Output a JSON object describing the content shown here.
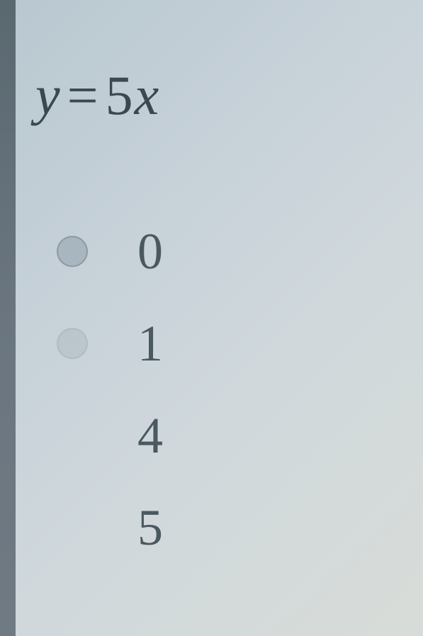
{
  "equation": {
    "var_y": "y",
    "equals": "=",
    "coef": "5",
    "var_x": "x"
  },
  "options": [
    {
      "label": "0",
      "radio_visible": true,
      "radio_faded": false
    },
    {
      "label": "1",
      "radio_visible": true,
      "radio_faded": true
    },
    {
      "label": "4",
      "radio_visible": false,
      "radio_faded": true
    },
    {
      "label": "5",
      "radio_visible": false,
      "radio_faded": true
    }
  ],
  "colors": {
    "text": "#3a4850",
    "option_text": "#4a5860",
    "left_border": "#5a6870",
    "background_start": "#b8c8d0",
    "background_end": "#d8dcd8"
  }
}
